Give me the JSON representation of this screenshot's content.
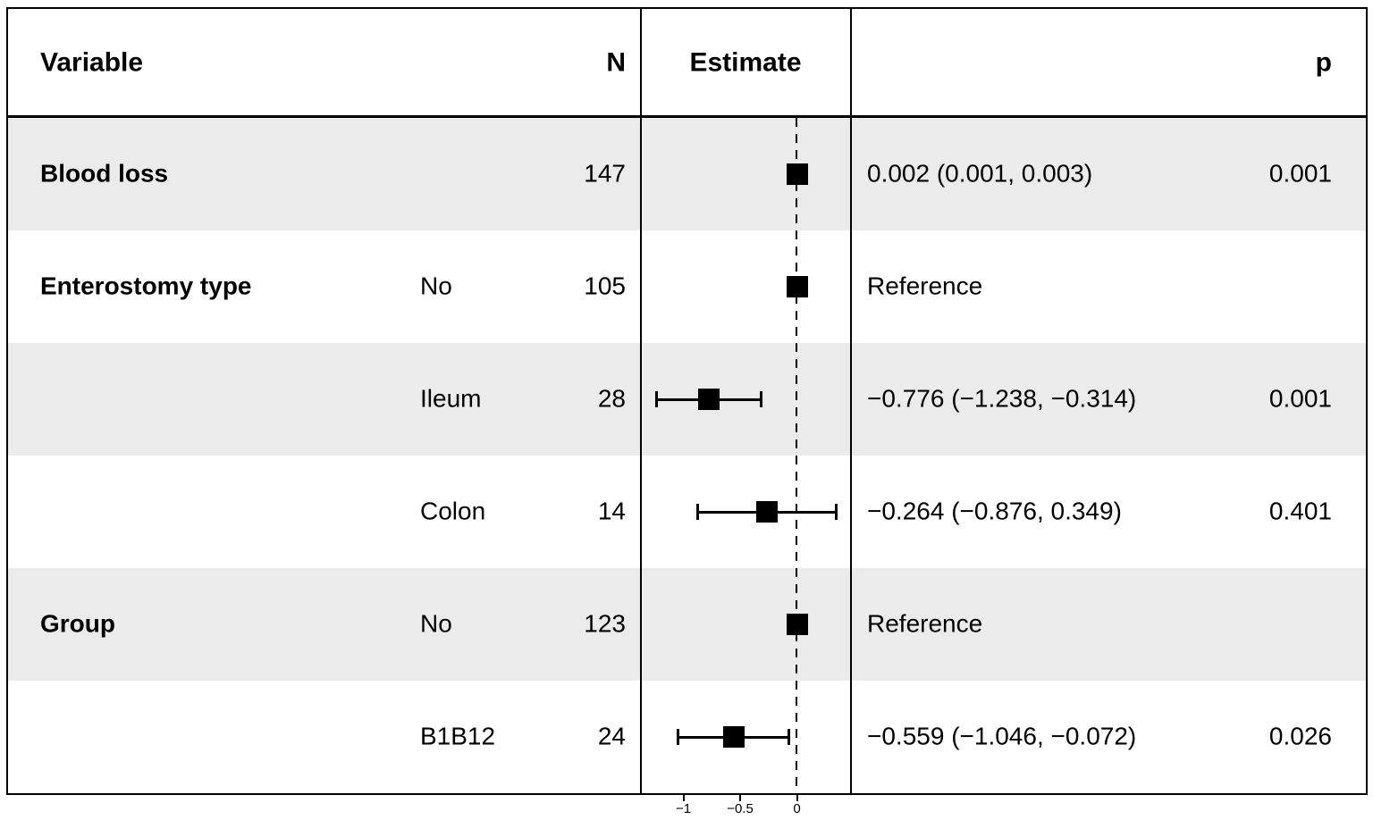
{
  "chart_data": {
    "type": "forest",
    "title": "",
    "columns": {
      "variable": "Variable",
      "n": "N",
      "estimate": "Estimate",
      "p": "p"
    },
    "axis": {
      "ticks": [
        -1,
        -0.5,
        0
      ],
      "tick_labels": [
        "−1",
        "−0.5",
        "0"
      ],
      "zero_line_at": 0,
      "xlim": [
        -1.39,
        0.48
      ],
      "zero_line_style": "dashed"
    },
    "rows": [
      {
        "variable": "Blood loss",
        "level": "",
        "n": "147",
        "estimate": 0.002,
        "ci_low": 0.001,
        "ci_high": 0.003,
        "estimate_text": "0.002 (0.001, 0.003)",
        "p": "0.001",
        "shaded": true
      },
      {
        "variable": "Enterostomy type",
        "level": "No",
        "n": "105",
        "estimate": 0,
        "ci_low": null,
        "ci_high": null,
        "estimate_text": "Reference",
        "p": "",
        "shaded": false
      },
      {
        "variable": "",
        "level": "Ileum",
        "n": "28",
        "estimate": -0.776,
        "ci_low": -1.238,
        "ci_high": -0.314,
        "estimate_text": "−0.776 (−1.238, −0.314)",
        "p": "0.001",
        "shaded": true
      },
      {
        "variable": "",
        "level": "Colon",
        "n": "14",
        "estimate": -0.264,
        "ci_low": -0.876,
        "ci_high": 0.349,
        "estimate_text": "−0.264 (−0.876, 0.349)",
        "p": "0.401",
        "shaded": false
      },
      {
        "variable": "Group",
        "level": "No",
        "n": "123",
        "estimate": 0,
        "ci_low": null,
        "ci_high": null,
        "estimate_text": "Reference",
        "p": "",
        "shaded": true
      },
      {
        "variable": "",
        "level": "B1B12",
        "n": "24",
        "estimate": -0.559,
        "ci_low": -1.046,
        "ci_high": -0.072,
        "estimate_text": "−0.559 (−1.046, −0.072)",
        "p": "0.026",
        "shaded": false
      }
    ],
    "colors": {
      "stripe": "#ebebeb",
      "ink": "#000000",
      "background": "#ffffff"
    }
  }
}
